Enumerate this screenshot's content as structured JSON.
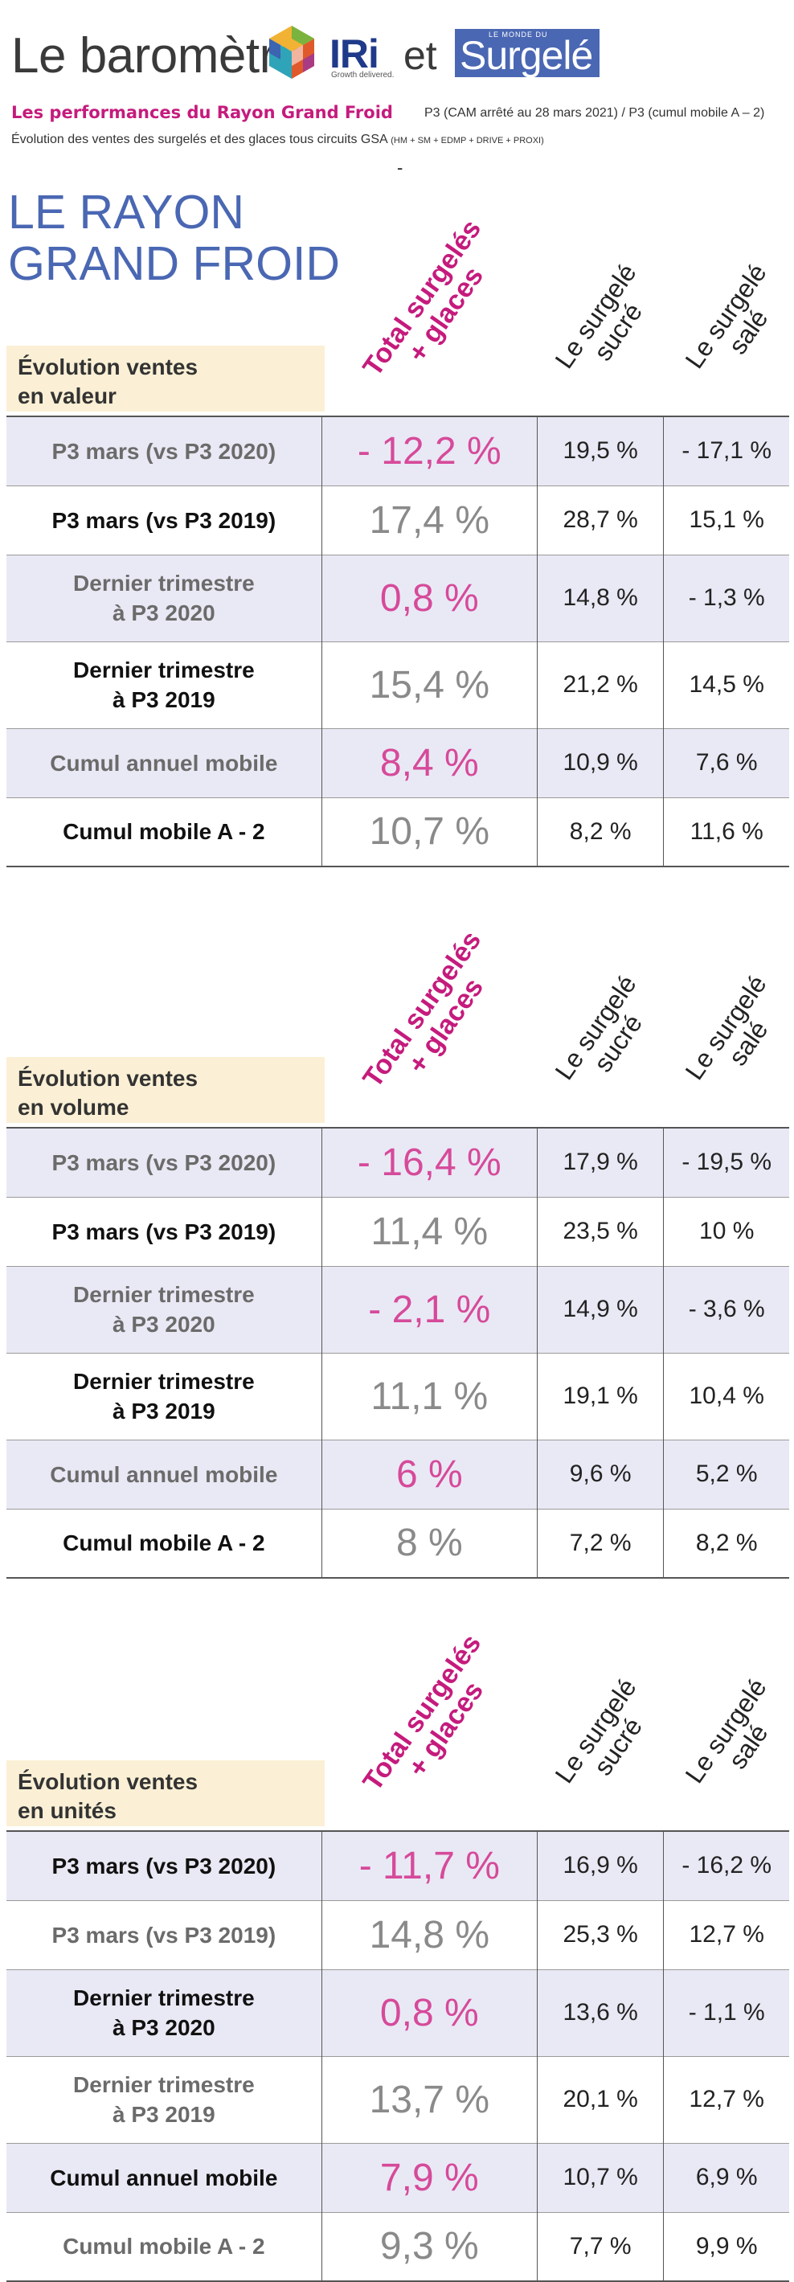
{
  "header": {
    "title": "Le baromètre",
    "iri_logo_text": "IRi",
    "iri_tagline": "Growth delivered.",
    "conjunction": "et",
    "surgele_small": "LE MONDE DU",
    "surgele_logo_text": "Surgelé"
  },
  "intro": {
    "headline": "Les performances du Rayon Grand Froid",
    "headline_note": "P3 (CAM arrêté au 28 mars 2021) / P3 (cumul mobile A – 2)",
    "subtitle": "Évolution des ventes des surgelés et des glaces tous circuits GSA",
    "subtitle_small": "(HM + SM + EDMP + DRIVE + PROXI)",
    "dash": "-",
    "rayon_line1": "LE RAYON",
    "rayon_line2": "GRAND FROID"
  },
  "columns": {
    "total_line1": "Total surgelés",
    "total_line2": "+ glaces",
    "sucre_line1": "Le surgelé",
    "sucre_line2": "sucré",
    "sale_line1": "Le surgelé",
    "sale_line2": "salé"
  },
  "tables": [
    {
      "label_line1": "Évolution ventes",
      "label_line2": "en valeur",
      "rows": [
        {
          "label1": "P3 mars (vs P3 2020)",
          "label2": "",
          "total": "- 12,2 %",
          "sucre": "19,5 %",
          "sale": "- 17,1 %"
        },
        {
          "label1": "P3 mars (vs P3 2019)",
          "label2": "",
          "total": "17,4 %",
          "sucre": "28,7 %",
          "sale": "15,1 %"
        },
        {
          "label1": "Dernier trimestre",
          "label2": "à P3 2020",
          "total": "0,8 %",
          "sucre": "14,8 %",
          "sale": "- 1,3 %"
        },
        {
          "label1": "Dernier trimestre",
          "label2": "à P3 2019",
          "total": "15,4 %",
          "sucre": "21,2 %",
          "sale": "14,5 %"
        },
        {
          "label1": "Cumul annuel mobile",
          "label2": "",
          "total": "8,4 %",
          "sucre": "10,9 %",
          "sale": "7,6 %"
        },
        {
          "label1": "Cumul mobile  A - 2",
          "label2": "",
          "total": "10,7 %",
          "sucre": "8,2 %",
          "sale": "11,6 %"
        }
      ]
    },
    {
      "label_line1": "Évolution ventes",
      "label_line2": "en volume",
      "rows": [
        {
          "label1": "P3 mars (vs P3 2020)",
          "label2": "",
          "total": "- 16,4 %",
          "sucre": "17,9 %",
          "sale": "- 19,5 %"
        },
        {
          "label1": "P3 mars (vs P3 2019)",
          "label2": "",
          "total": "11,4 %",
          "sucre": "23,5 %",
          "sale": "10 %"
        },
        {
          "label1": "Dernier trimestre",
          "label2": "à P3 2020",
          "total": "- 2,1 %",
          "sucre": "14,9 %",
          "sale": "- 3,6 %"
        },
        {
          "label1": "Dernier trimestre",
          "label2": "à P3 2019",
          "total": "11,1 %",
          "sucre": "19,1 %",
          "sale": "10,4 %"
        },
        {
          "label1": "Cumul annuel mobile",
          "label2": "",
          "total": "6 %",
          "sucre": "9,6  %",
          "sale": "5,2 %"
        },
        {
          "label1": "Cumul mobile  A - 2",
          "label2": "",
          "total": "8 %",
          "sucre": "7,2 %",
          "sale": "8,2 %"
        }
      ]
    },
    {
      "label_line1": "Évolution ventes",
      "label_line2": "en unités",
      "rows": [
        {
          "label1": "P3 mars (vs P3 2020)",
          "label2": "",
          "total": "- 11,7 %",
          "sucre": "16,9 %",
          "sale": "- 16,2 %"
        },
        {
          "label1": "P3 mars (vs P3 2019)",
          "label2": "",
          "total": "14,8 %",
          "sucre": "25,3 %",
          "sale": "12,7 %"
        },
        {
          "label1": "Dernier trimestre",
          "label2": "à P3 2020",
          "total": "0,8 %",
          "sucre": "13,6 %",
          "sale": "- 1,1 %"
        },
        {
          "label1": "Dernier trimestre",
          "label2": "à P3 2019",
          "total": "13,7 %",
          "sucre": "20,1 %",
          "sale": "12,7 %"
        },
        {
          "label1": "Cumul annuel mobile",
          "label2": "",
          "total": "7,9 %",
          "sucre": "10,7 %",
          "sale": "6,9 %"
        },
        {
          "label1": "Cumul mobile  A - 2",
          "label2": "",
          "total": "9,3 %",
          "sucre": "7,7 %",
          "sale": "9,9 %"
        }
      ]
    }
  ]
}
